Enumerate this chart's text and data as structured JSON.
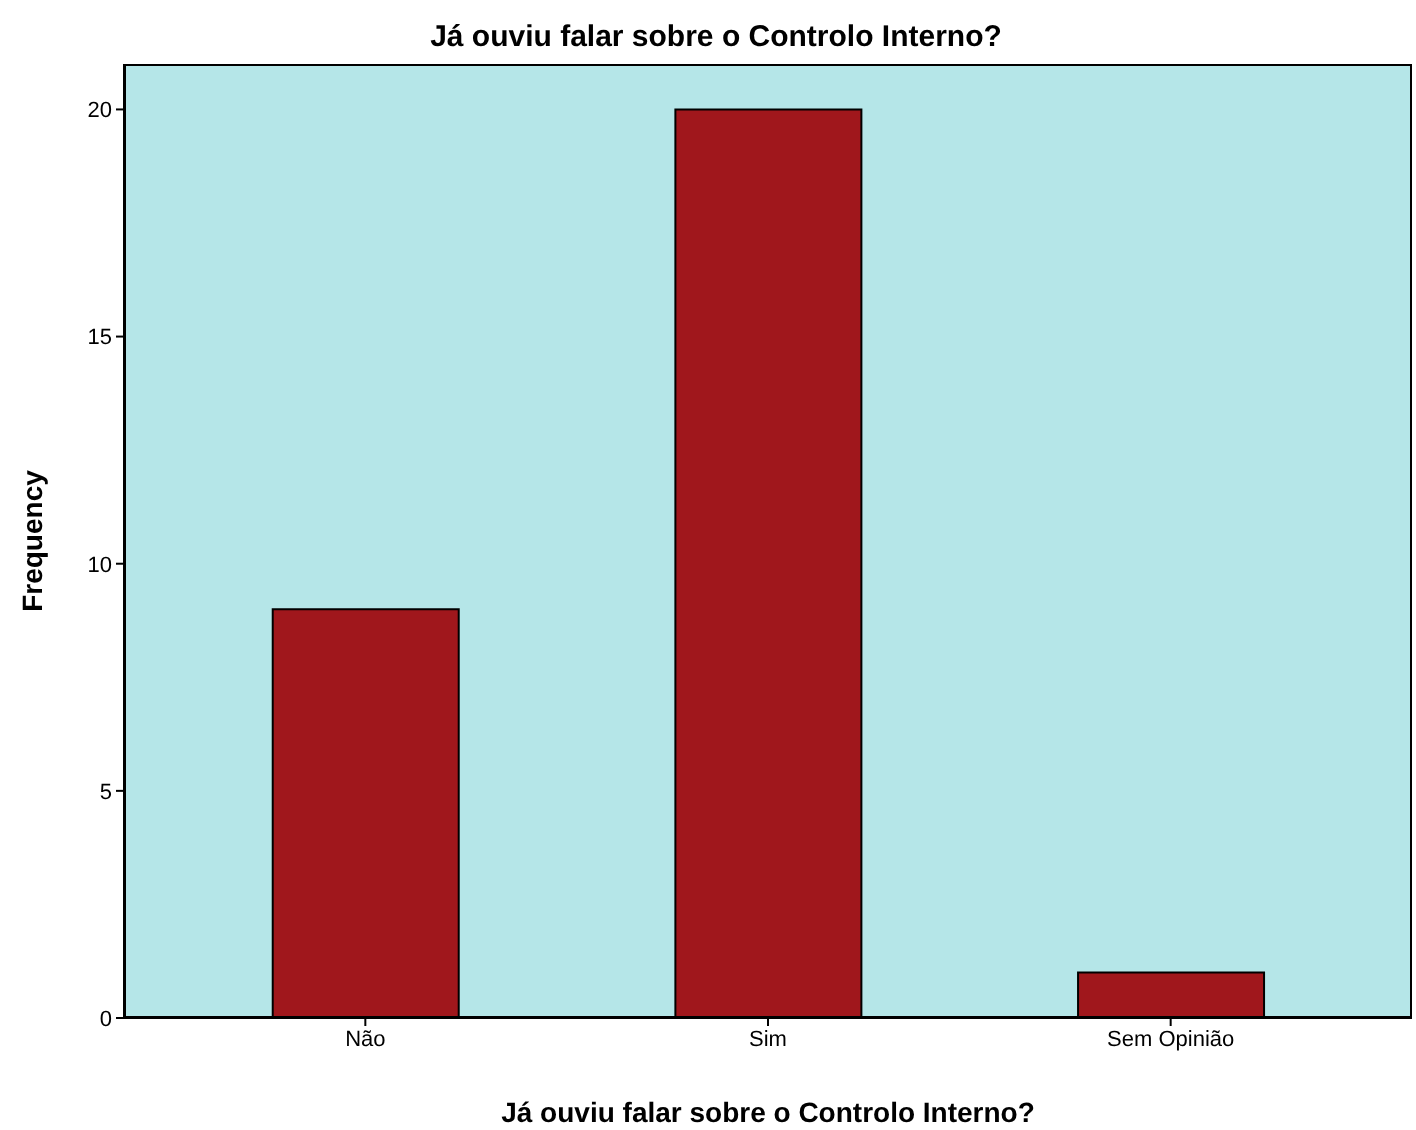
{
  "chart_data": {
    "type": "bar",
    "title": "Já ouviu falar sobre o Controlo Interno?",
    "xlabel": "Já ouviu falar sobre o Controlo Interno?",
    "ylabel": "Frequency",
    "categories": [
      "Não",
      "Sim",
      "Sem Opinião"
    ],
    "values": [
      9,
      20,
      1
    ],
    "color": "#a0171c",
    "ylim": [
      0,
      21
    ],
    "yticks": [
      0,
      5,
      10,
      15,
      20
    ],
    "grid": false,
    "legend": false
  }
}
